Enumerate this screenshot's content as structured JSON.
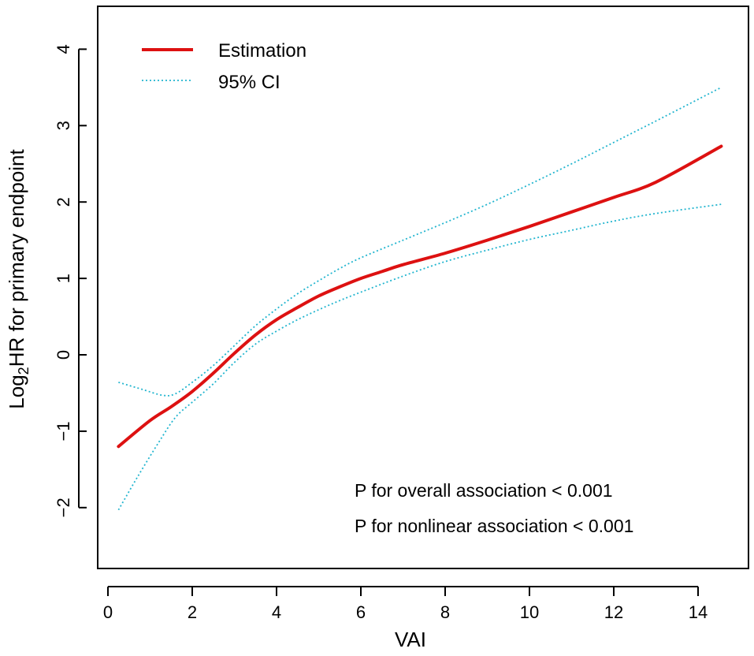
{
  "chart_data": {
    "type": "line",
    "title": "",
    "xlabel": "VAI",
    "ylabel": {
      "prefix": "Log",
      "subscript": "2",
      "suffix": "HR for primary endpoint"
    },
    "xlim": [
      0,
      15
    ],
    "ylim": [
      -2.8,
      4.5
    ],
    "x_ticks": [
      0,
      2,
      4,
      6,
      8,
      10,
      12,
      14
    ],
    "y_ticks": [
      -2,
      -1,
      0,
      1,
      2,
      3,
      4
    ],
    "x_tick_labels": [
      "0",
      "2",
      "4",
      "6",
      "8",
      "10",
      "12",
      "14"
    ],
    "y_tick_labels": [
      "−2",
      "−1",
      "0",
      "1",
      "2",
      "3",
      "4"
    ],
    "grid": false,
    "legend": {
      "position": "top-left",
      "entries": [
        {
          "label": "Estimation",
          "style": "solid",
          "color": "#dd1111"
        },
        {
          "label": "95% CI",
          "style": "dotted",
          "color": "#22b5cf"
        }
      ]
    },
    "annotations": [
      "P for overall association < 0.001",
      "P for nonlinear association < 0.001"
    ],
    "series": [
      {
        "name": "Estimation",
        "color": "#dd1111",
        "style": "solid",
        "x": [
          0.25,
          1.0,
          1.5,
          2.0,
          2.5,
          3.0,
          3.5,
          4.0,
          4.5,
          5.0,
          5.5,
          6.0,
          6.5,
          7.0,
          8.0,
          9.0,
          10.0,
          11.0,
          12.0,
          13.0,
          14.55
        ],
        "y": [
          -1.2,
          -0.86,
          -0.68,
          -0.48,
          -0.24,
          0.02,
          0.26,
          0.46,
          0.62,
          0.77,
          0.89,
          1.0,
          1.09,
          1.18,
          1.33,
          1.5,
          1.68,
          1.87,
          2.06,
          2.26,
          2.73
        ]
      },
      {
        "name": "95% CI upper",
        "color": "#22b5cf",
        "style": "dotted",
        "x": [
          0.25,
          0.8,
          1.3,
          1.6,
          2.0,
          2.5,
          3.0,
          3.5,
          4.0,
          4.5,
          5.0,
          5.5,
          6.0,
          7.0,
          8.0,
          9.0,
          10.0,
          11.0,
          12.0,
          13.0,
          14.55
        ],
        "y": [
          -0.36,
          -0.45,
          -0.53,
          -0.51,
          -0.36,
          -0.14,
          0.12,
          0.38,
          0.6,
          0.8,
          0.97,
          1.13,
          1.27,
          1.5,
          1.73,
          1.97,
          2.23,
          2.5,
          2.78,
          3.06,
          3.5
        ]
      },
      {
        "name": "95% CI lower",
        "color": "#22b5cf",
        "style": "dotted",
        "x": [
          0.25,
          0.7,
          1.2,
          1.6,
          2.0,
          2.5,
          3.0,
          3.5,
          4.0,
          4.5,
          5.0,
          5.5,
          6.0,
          7.0,
          8.0,
          9.0,
          10.0,
          11.0,
          12.0,
          13.0,
          14.55
        ],
        "y": [
          -2.03,
          -1.6,
          -1.15,
          -0.82,
          -0.62,
          -0.38,
          -0.1,
          0.14,
          0.31,
          0.46,
          0.59,
          0.71,
          0.82,
          1.03,
          1.22,
          1.37,
          1.51,
          1.63,
          1.75,
          1.85,
          1.97
        ]
      }
    ]
  }
}
